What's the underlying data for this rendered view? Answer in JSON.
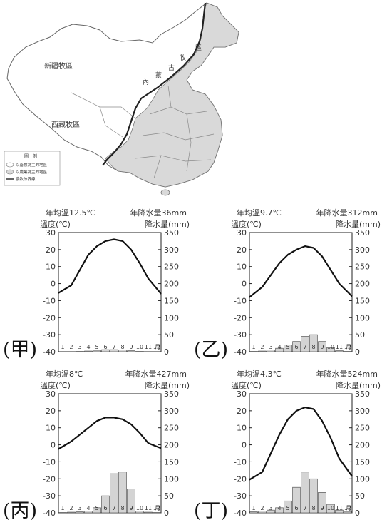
{
  "map": {
    "labels": {
      "xinjiang": "新疆牧區",
      "tibet": "西藏牧區",
      "inner1": "區",
      "inner2": "牧",
      "inner3": "古",
      "inner4": "蒙",
      "inner5": "內"
    },
    "legend": {
      "title": "圖　例",
      "items": [
        "以畜牧為主的地區",
        "以農業為主的地區",
        "農牧分界線"
      ]
    },
    "colors": {
      "farm": "#d9d9d9",
      "pasture": "#ffffff",
      "boundary": "#222222"
    }
  },
  "chart_data": [
    {
      "type": "bar",
      "panel_label": "(甲)",
      "annual_temp": "年均溫12.5℃",
      "annual_precip": "年降水量36mm",
      "ylabel_left": "溫度(℃)",
      "ylabel_right": "降水量(mm)",
      "month_unit": "月",
      "categories": [
        "1",
        "2",
        "3",
        "4",
        "5",
        "6",
        "7",
        "8",
        "9",
        "10",
        "11",
        "12"
      ],
      "temp_ylim": [
        -40,
        30
      ],
      "precip_ylim": [
        0,
        350
      ],
      "temp_ticks": [
        30,
        20,
        10,
        0,
        -10,
        -20,
        -30,
        -40
      ],
      "precip_ticks": [
        350,
        300,
        250,
        200,
        150,
        100,
        50,
        0
      ],
      "series": [
        {
          "name": "溫度",
          "kind": "line",
          "values": [
            -4,
            -1,
            8,
            17,
            22,
            25,
            26,
            25,
            20,
            12,
            3,
            -3
          ]
        },
        {
          "name": "降水量",
          "kind": "bar",
          "values": [
            0,
            0,
            1,
            2,
            4,
            6,
            6,
            5,
            3,
            1,
            0,
            0
          ]
        }
      ]
    },
    {
      "type": "bar",
      "panel_label": "(乙)",
      "annual_temp": "年均溫9.7℃",
      "annual_precip": "年降水量312mm",
      "ylabel_left": "溫度(℃)",
      "ylabel_right": "降水量(mm)",
      "month_unit": "月",
      "categories": [
        "1",
        "2",
        "3",
        "4",
        "5",
        "6",
        "7",
        "8",
        "9",
        "10",
        "11",
        "12"
      ],
      "temp_ylim": [
        -40,
        30
      ],
      "precip_ylim": [
        0,
        350
      ],
      "temp_ticks": [
        30,
        20,
        10,
        0,
        -10,
        -20,
        -30,
        -40
      ],
      "precip_ticks": [
        350,
        300,
        250,
        200,
        150,
        100,
        50,
        0
      ],
      "series": [
        {
          "name": "溫度",
          "kind": "line",
          "values": [
            -6,
            -2,
            5,
            12,
            17,
            20,
            22,
            21,
            16,
            8,
            0,
            -5
          ]
        },
        {
          "name": "降水量",
          "kind": "bar",
          "values": [
            1,
            2,
            5,
            10,
            20,
            30,
            45,
            50,
            30,
            12,
            3,
            1
          ]
        }
      ]
    },
    {
      "type": "bar",
      "panel_label": "(丙)",
      "annual_temp": "年均溫8℃",
      "annual_precip": "年降水量427mm",
      "ylabel_left": "溫度(℃)",
      "ylabel_right": "降水量(mm)",
      "month_unit": "月",
      "categories": [
        "1",
        "2",
        "3",
        "4",
        "5",
        "6",
        "7",
        "8",
        "9",
        "10",
        "11",
        "12"
      ],
      "temp_ylim": [
        -40,
        30
      ],
      "precip_ylim": [
        0,
        350
      ],
      "temp_ticks": [
        30,
        20,
        10,
        0,
        -10,
        -20,
        -30,
        -40
      ],
      "precip_ticks": [
        350,
        300,
        250,
        200,
        150,
        100,
        50,
        0
      ],
      "series": [
        {
          "name": "溫度",
          "kind": "line",
          "values": [
            -1,
            2,
            6,
            10,
            14,
            16,
            16,
            15,
            12,
            7,
            1,
            -1
          ]
        },
        {
          "name": "降水量",
          "kind": "bar",
          "values": [
            1,
            2,
            3,
            5,
            15,
            50,
            115,
            120,
            70,
            5,
            2,
            1
          ]
        }
      ]
    },
    {
      "type": "bar",
      "panel_label": "(丁)",
      "annual_temp": "年均溫4.3℃",
      "annual_precip": "年降水量524mm",
      "ylabel_left": "溫度(℃)",
      "ylabel_right": "降水量(mm)",
      "month_unit": "月",
      "categories": [
        "1",
        "2",
        "3",
        "4",
        "5",
        "6",
        "7",
        "8",
        "9",
        "10",
        "11",
        "12"
      ],
      "temp_ylim": [
        -40,
        30
      ],
      "precip_ylim": [
        0,
        350
      ],
      "temp_ticks": [
        30,
        20,
        10,
        0,
        -10,
        -20,
        -30,
        -40
      ],
      "precip_ticks": [
        350,
        300,
        250,
        200,
        150,
        100,
        50,
        0
      ],
      "series": [
        {
          "name": "溫度",
          "kind": "line",
          "values": [
            -19,
            -16,
            -5,
            6,
            15,
            20,
            22,
            21,
            14,
            4,
            -8,
            -15
          ]
        },
        {
          "name": "降水量",
          "kind": "bar",
          "values": [
            3,
            5,
            8,
            15,
            35,
            75,
            120,
            100,
            60,
            25,
            8,
            4
          ]
        }
      ]
    }
  ]
}
